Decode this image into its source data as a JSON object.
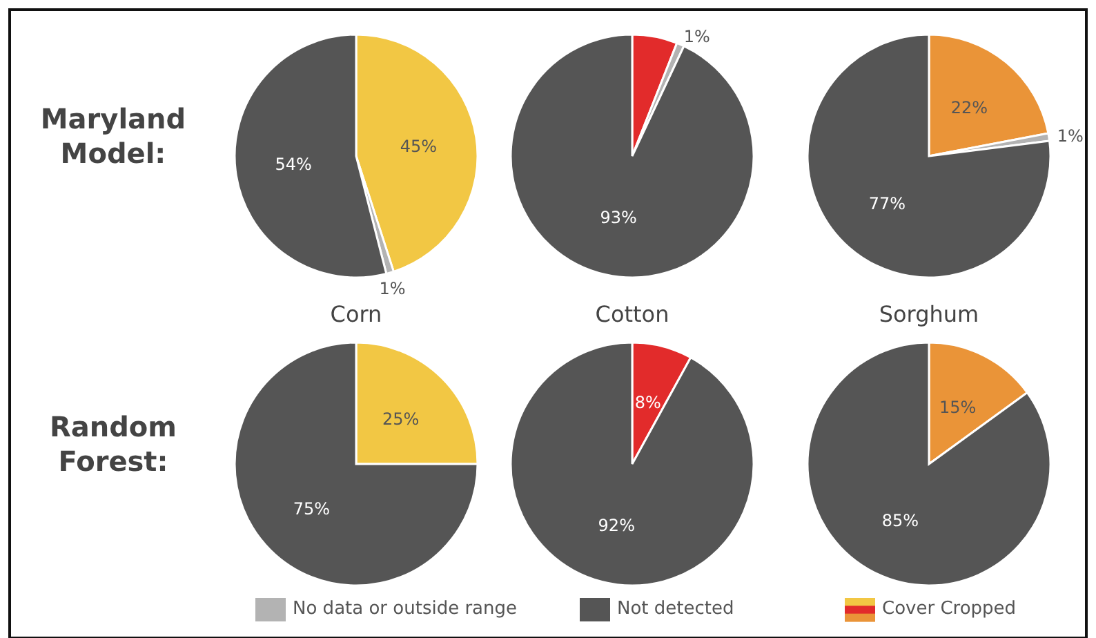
{
  "chart_data": [
    {
      "type": "pie",
      "ylabel": "Maryland Model:",
      "xlabel": "Corn",
      "legend": "bottom",
      "categories": [
        "Cover Cropped",
        "No data or outside range",
        "Not detected"
      ],
      "values": [
        45,
        1,
        54
      ],
      "colors": [
        "#f2c744",
        "#b3b3b3",
        "#555555"
      ],
      "value_labels": [
        "45%",
        "1%",
        "54%"
      ]
    },
    {
      "type": "pie",
      "xlabel": "Cotton",
      "categories": [
        null,
        null,
        null
      ],
      "values": [
        6,
        1,
        93
      ],
      "colors": [
        "#e22b2b",
        "#b3b3b3",
        "#555555"
      ],
      "value_labels": [
        null,
        "1%",
        "93%"
      ]
    },
    {
      "type": "pie",
      "xlabel": "Sorghum",
      "categories": [
        null,
        null,
        null
      ],
      "values": [
        22,
        1,
        77
      ],
      "colors": [
        "#ea9438",
        "#b3b3b3",
        "#555555"
      ],
      "value_labels": [
        "22%",
        "1%",
        "77%"
      ]
    },
    {
      "type": "pie",
      "ylabel": "Random Forest:",
      "categories": [
        null,
        null
      ],
      "values": [
        25,
        75
      ],
      "colors": [
        "#f2c744",
        "#555555"
      ],
      "value_labels": [
        "25%",
        "75%"
      ]
    },
    {
      "type": "pie",
      "categories": [
        null,
        null
      ],
      "values": [
        8,
        92
      ],
      "colors": [
        "#e22b2b",
        "#555555"
      ],
      "value_labels": [
        "8%",
        "92%"
      ]
    },
    {
      "type": "pie",
      "categories": [
        null,
        null
      ],
      "values": [
        15,
        85
      ],
      "colors": [
        "#ea9438",
        "#555555"
      ],
      "value_labels": [
        "15%",
        "85%"
      ]
    }
  ]
}
